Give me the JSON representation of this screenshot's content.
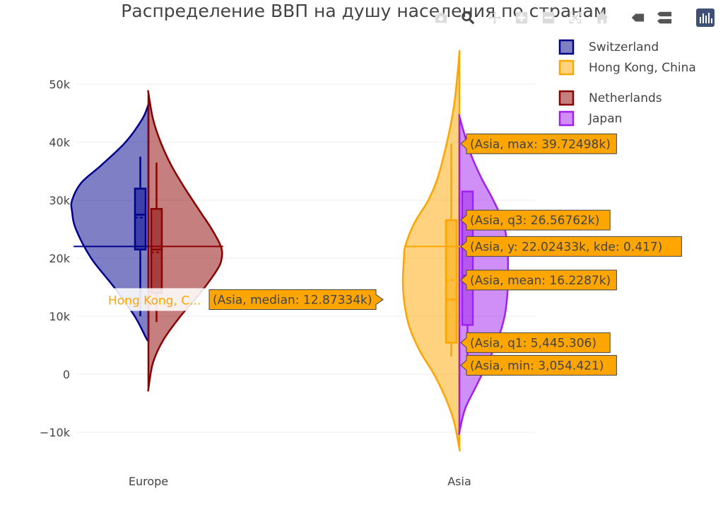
{
  "chart_data": {
    "type": "violin",
    "title": "Распределение ВВП на душу населения по странам",
    "categories": [
      "Europe",
      "Asia"
    ],
    "y_ticks": [
      "50k",
      "40k",
      "30k",
      "20k",
      "10k",
      "0",
      "−10k"
    ],
    "y_tick_values": [
      50000,
      40000,
      30000,
      20000,
      10000,
      0,
      -10000
    ],
    "ylim": [
      -14000,
      56000
    ],
    "grid": true,
    "legend_position": "top-right",
    "legend_groups": [
      [
        "Switzerland",
        "Hong Kong, China"
      ],
      [
        "Netherlands",
        "Japan"
      ]
    ],
    "series": [
      {
        "name": "Switzerland",
        "category": "Europe",
        "side": "negative",
        "color": "#00008b",
        "fill": "rgba(0,0,139,0.5)",
        "kde_y": [
          6000,
          10000,
          15000,
          20000,
          25000,
          28000,
          30000,
          33000,
          36000,
          40000,
          44000,
          46500
        ],
        "kde_width": [
          0.02,
          0.18,
          0.45,
          0.75,
          0.95,
          1.0,
          1.0,
          0.88,
          0.62,
          0.3,
          0.08,
          0.0
        ],
        "box": {
          "min": 10000,
          "q1": 21500,
          "median": 27500,
          "q3": 32000,
          "max": 37500,
          "mean": 27000
        }
      },
      {
        "name": "Netherlands",
        "category": "Europe",
        "side": "positive",
        "color": "#8b0000",
        "fill": "rgba(139,0,0,0.5)",
        "kde_y": [
          -2500,
          2000,
          6000,
          10000,
          14000,
          18000,
          20000,
          22000,
          25000,
          28000,
          32000,
          36000,
          40000,
          44000,
          48500
        ],
        "kde_width": [
          0.0,
          0.06,
          0.2,
          0.42,
          0.68,
          0.9,
          0.96,
          0.95,
          0.83,
          0.68,
          0.48,
          0.3,
          0.16,
          0.06,
          0.0
        ],
        "box": {
          "min": 9000,
          "q1": 14000,
          "median": 21500,
          "q3": 28500,
          "max": 36500,
          "mean": 21000
        }
      },
      {
        "name": "Hong Kong, China",
        "category": "Asia",
        "side": "negative",
        "color": "#ffa500",
        "fill": "rgba(255,165,0,0.5)",
        "kde_y": [
          -12800,
          -8000,
          -4000,
          0,
          4000,
          8000,
          12000,
          16000,
          20000,
          22000,
          26000,
          30000,
          34000,
          40000,
          46000,
          52000,
          55500
        ],
        "kde_width": [
          0.0,
          0.1,
          0.25,
          0.45,
          0.7,
          0.88,
          0.97,
          1.0,
          0.98,
          0.96,
          0.8,
          0.55,
          0.38,
          0.22,
          0.1,
          0.03,
          0.0
        ],
        "box": {
          "min": 3054.421,
          "q1": 5445.306,
          "median": 12873.34,
          "q3": 26567.62,
          "max": 39724.98,
          "mean": 16228.7
        }
      },
      {
        "name": "Japan",
        "category": "Asia",
        "side": "positive",
        "color": "#a020f0",
        "fill": "rgba(160,32,240,0.5)",
        "kde_y": [
          -10000,
          -6000,
          -2000,
          2000,
          6000,
          10000,
          14000,
          18000,
          22000,
          26000,
          30000,
          34000,
          38000,
          42000,
          44500
        ],
        "kde_width": [
          0.0,
          0.1,
          0.3,
          0.5,
          0.68,
          0.8,
          0.85,
          0.86,
          0.85,
          0.78,
          0.6,
          0.38,
          0.2,
          0.07,
          0.0
        ],
        "box": {
          "min": 3000,
          "q1": 8500,
          "median": 17000,
          "q3": 31500,
          "max": 31500,
          "mean": 17000
        }
      }
    ],
    "hover_line": {
      "category": "Asia",
      "y": 22024.33,
      "color": "#ffa500"
    },
    "hover_labels": [
      {
        "text": "(Asia, max: 39.72498k)",
        "y": 39724.98
      },
      {
        "text": "(Asia, q3: 26.56762k)",
        "y": 26567.62
      },
      {
        "text": "(Asia, y: 22.02433k, kde: 0.417)",
        "y": 22024.33
      },
      {
        "text": "(Asia, mean: 16.2287k)",
        "y": 16228.7
      },
      {
        "text": "(Asia, q1: 5,445.306)",
        "y": 5445.306
      },
      {
        "text": "(Asia, min: 3,054.421)",
        "y": 3054.421
      },
      {
        "text": "(Asia, median: 12.87334k)",
        "y": 12873.34,
        "side": "left"
      }
    ],
    "hover_name_label": "Hong Kong, C..."
  },
  "modebar": {
    "buttons": [
      "camera-icon",
      "zoom-icon",
      "pan-icon",
      "zoom-in-icon",
      "zoom-out-icon",
      "autoscale-icon",
      "home-icon",
      "spike-lines-icon",
      "compare-hover-icon",
      "plotly-logo-icon"
    ]
  }
}
